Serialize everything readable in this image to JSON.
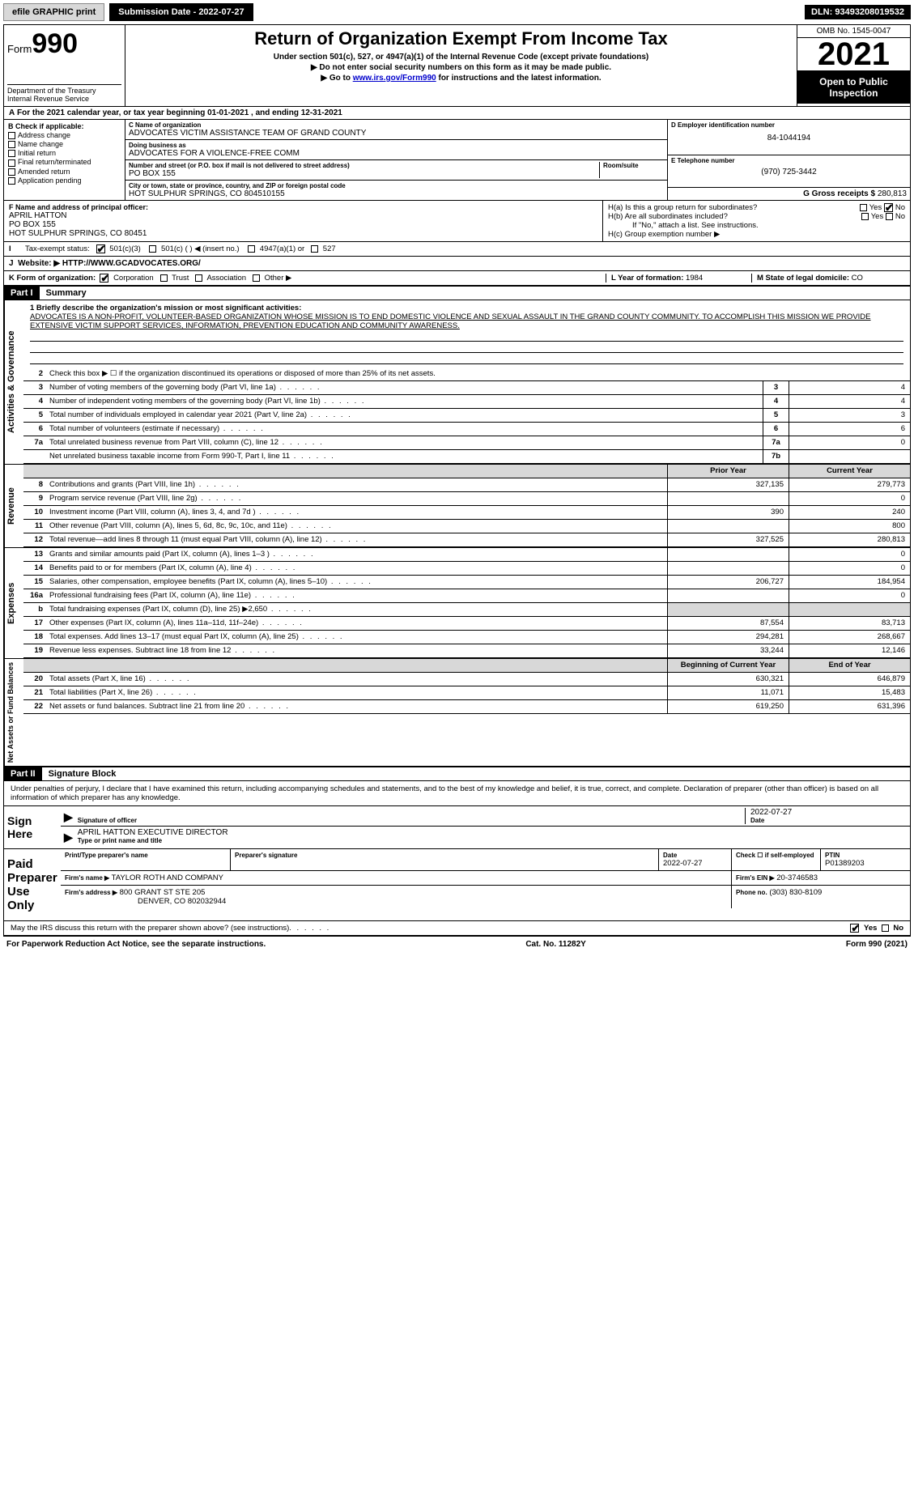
{
  "top": {
    "efile": "efile GRAPHIC print",
    "submission_btn": "Submission Date - 2022-07-27",
    "dln": "DLN: 93493208019532"
  },
  "header": {
    "form_word": "Form",
    "form_num": "990",
    "title": "Return of Organization Exempt From Income Tax",
    "sub1": "Under section 501(c), 527, or 4947(a)(1) of the Internal Revenue Code (except private foundations)",
    "sub2": "▶ Do not enter social security numbers on this form as it may be made public.",
    "sub3_pre": "▶ Go to ",
    "sub3_link": "www.irs.gov/Form990",
    "sub3_post": " for instructions and the latest information.",
    "dept": "Department of the Treasury",
    "irs": "Internal Revenue Service",
    "omb": "OMB No. 1545-0047",
    "year": "2021",
    "inspect": "Open to Public Inspection"
  },
  "a_line": "For the 2021 calendar year, or tax year beginning 01-01-2021    , and ending 12-31-2021",
  "b": {
    "title": "B Check if applicable:",
    "items": [
      "Address change",
      "Name change",
      "Initial return",
      "Final return/terminated",
      "Amended return",
      "Application pending"
    ]
  },
  "c": {
    "name_lbl": "C Name of organization",
    "name": "ADVOCATES VICTIM ASSISTANCE TEAM OF GRAND COUNTY",
    "dba_lbl": "Doing business as",
    "dba": "ADVOCATES FOR A VIOLENCE-FREE COMM",
    "addr_lbl": "Number and street (or P.O. box if mail is not delivered to street address)",
    "room_lbl": "Room/suite",
    "addr": "PO BOX 155",
    "city_lbl": "City or town, state or province, country, and ZIP or foreign postal code",
    "city": "HOT SULPHUR SPRINGS, CO  804510155"
  },
  "d": {
    "lbl": "D Employer identification number",
    "val": "84-1044194"
  },
  "e": {
    "lbl": "E Telephone number",
    "val": "(970) 725-3442"
  },
  "g": {
    "lbl": "G Gross receipts $",
    "val": "280,813"
  },
  "f": {
    "lbl": "F  Name and address of principal officer:",
    "name": "APRIL HATTON",
    "addr1": "PO BOX 155",
    "addr2": "HOT SULPHUR SPRINGS, CO  80451"
  },
  "h": {
    "a": "H(a)  Is this a group return for subordinates?",
    "b": "H(b)  Are all subordinates included?",
    "b_note": "If \"No,\" attach a list. See instructions.",
    "c": "H(c)  Group exemption number ▶",
    "yes": "Yes",
    "no": "No"
  },
  "i": {
    "lbl": "Tax-exempt status:",
    "opts": [
      "501(c)(3)",
      "501(c) (   ) ◀ (insert no.)",
      "4947(a)(1) or",
      "527"
    ]
  },
  "j": {
    "lbl": "Website: ▶",
    "val": "HTTP://WWW.GCADVOCATES.ORG/"
  },
  "k": {
    "lbl": "K Form of organization:",
    "opts": [
      "Corporation",
      "Trust",
      "Association",
      "Other ▶"
    ],
    "l_lbl": "L Year of formation:",
    "l_val": "1984",
    "m_lbl": "M State of legal domicile:",
    "m_val": "CO"
  },
  "part1": {
    "hdr": "Part I",
    "title": "Summary",
    "q1_lbl": "1  Briefly describe the organization's mission or most significant activities:",
    "q1_text": "ADVOCATES IS A NON-PROFIT, VOLUNTEER-BASED ORGANIZATION WHOSE MISSION IS TO END DOMESTIC VIOLENCE AND SEXUAL ASSAULT IN THE GRAND COUNTY COMMUNITY. TO ACCOMPLISH THIS MISSION WE PROVIDE EXTENSIVE VICTIM SUPPORT SERVICES, INFORMATION, PREVENTION EDUCATION AND COMMUNITY AWARENESS.",
    "q2": "Check this box ▶ ☐ if the organization discontinued its operations or disposed of more than 25% of its net assets.",
    "side_gov": "Activities & Governance",
    "side_rev": "Revenue",
    "side_exp": "Expenses",
    "side_net": "Net Assets or Fund Balances",
    "rows_gov": [
      {
        "n": "3",
        "t": "Number of voting members of the governing body (Part VI, line 1a)",
        "box": "3",
        "v": "4"
      },
      {
        "n": "4",
        "t": "Number of independent voting members of the governing body (Part VI, line 1b)",
        "box": "4",
        "v": "4"
      },
      {
        "n": "5",
        "t": "Total number of individuals employed in calendar year 2021 (Part V, line 2a)",
        "box": "5",
        "v": "3"
      },
      {
        "n": "6",
        "t": "Total number of volunteers (estimate if necessary)",
        "box": "6",
        "v": "6"
      },
      {
        "n": "7a",
        "t": "Total unrelated business revenue from Part VIII, column (C), line 12",
        "box": "7a",
        "v": "0"
      },
      {
        "n": "",
        "t": "Net unrelated business taxable income from Form 990-T, Part I, line 11",
        "box": "7b",
        "v": ""
      }
    ],
    "col_prior": "Prior Year",
    "col_curr": "Current Year",
    "rows_rev": [
      {
        "n": "8",
        "t": "Contributions and grants (Part VIII, line 1h)",
        "p": "327,135",
        "c": "279,773"
      },
      {
        "n": "9",
        "t": "Program service revenue (Part VIII, line 2g)",
        "p": "",
        "c": "0"
      },
      {
        "n": "10",
        "t": "Investment income (Part VIII, column (A), lines 3, 4, and 7d )",
        "p": "390",
        "c": "240"
      },
      {
        "n": "11",
        "t": "Other revenue (Part VIII, column (A), lines 5, 6d, 8c, 9c, 10c, and 11e)",
        "p": "",
        "c": "800"
      },
      {
        "n": "12",
        "t": "Total revenue—add lines 8 through 11 (must equal Part VIII, column (A), line 12)",
        "p": "327,525",
        "c": "280,813"
      }
    ],
    "rows_exp": [
      {
        "n": "13",
        "t": "Grants and similar amounts paid (Part IX, column (A), lines 1–3 )",
        "p": "",
        "c": "0"
      },
      {
        "n": "14",
        "t": "Benefits paid to or for members (Part IX, column (A), line 4)",
        "p": "",
        "c": "0"
      },
      {
        "n": "15",
        "t": "Salaries, other compensation, employee benefits (Part IX, column (A), lines 5–10)",
        "p": "206,727",
        "c": "184,954"
      },
      {
        "n": "16a",
        "t": "Professional fundraising fees (Part IX, column (A), line 11e)",
        "p": "",
        "c": "0"
      },
      {
        "n": "b",
        "t": "Total fundraising expenses (Part IX, column (D), line 25) ▶2,650",
        "p": "GRAY",
        "c": "GRAY"
      },
      {
        "n": "17",
        "t": "Other expenses (Part IX, column (A), lines 11a–11d, 11f–24e)",
        "p": "87,554",
        "c": "83,713"
      },
      {
        "n": "18",
        "t": "Total expenses. Add lines 13–17 (must equal Part IX, column (A), line 25)",
        "p": "294,281",
        "c": "268,667"
      },
      {
        "n": "19",
        "t": "Revenue less expenses. Subtract line 18 from line 12",
        "p": "33,244",
        "c": "12,146"
      }
    ],
    "col_beg": "Beginning of Current Year",
    "col_end": "End of Year",
    "rows_net": [
      {
        "n": "20",
        "t": "Total assets (Part X, line 16)",
        "p": "630,321",
        "c": "646,879"
      },
      {
        "n": "21",
        "t": "Total liabilities (Part X, line 26)",
        "p": "11,071",
        "c": "15,483"
      },
      {
        "n": "22",
        "t": "Net assets or fund balances. Subtract line 21 from line 20",
        "p": "619,250",
        "c": "631,396"
      }
    ]
  },
  "part2": {
    "hdr": "Part II",
    "title": "Signature Block",
    "decl": "Under penalties of perjury, I declare that I have examined this return, including accompanying schedules and statements, and to the best of my knowledge and belief, it is true, correct, and complete. Declaration of preparer (other than officer) is based on all information of which preparer has any knowledge.",
    "sign_here": "Sign Here",
    "sig_officer": "Signature of officer",
    "date": "Date",
    "sig_date": "2022-07-27",
    "name_title": "APRIL HATTON  EXECUTIVE DIRECTOR",
    "name_title_lbl": "Type or print name and title",
    "paid": "Paid Preparer Use Only",
    "p_name_lbl": "Print/Type preparer's name",
    "p_sig_lbl": "Preparer's signature",
    "p_date_lbl": "Date",
    "p_date": "2022-07-27",
    "p_self": "Check ☐ if self-employed",
    "ptin_lbl": "PTIN",
    "ptin": "P01389203",
    "firm_name_lbl": "Firm's name    ▶",
    "firm_name": "TAYLOR ROTH AND COMPANY",
    "firm_ein_lbl": "Firm's EIN ▶",
    "firm_ein": "20-3746583",
    "firm_addr_lbl": "Firm's address ▶",
    "firm_addr1": "800 GRANT ST STE 205",
    "firm_addr2": "DENVER, CO  802032944",
    "phone_lbl": "Phone no.",
    "phone": "(303) 830-8109",
    "may_irs": "May the IRS discuss this return with the preparer shown above? (see instructions)",
    "yes": "Yes",
    "no": "No"
  },
  "footer": {
    "pra": "For Paperwork Reduction Act Notice, see the separate instructions.",
    "cat": "Cat. No. 11282Y",
    "form": "Form 990 (2021)"
  }
}
